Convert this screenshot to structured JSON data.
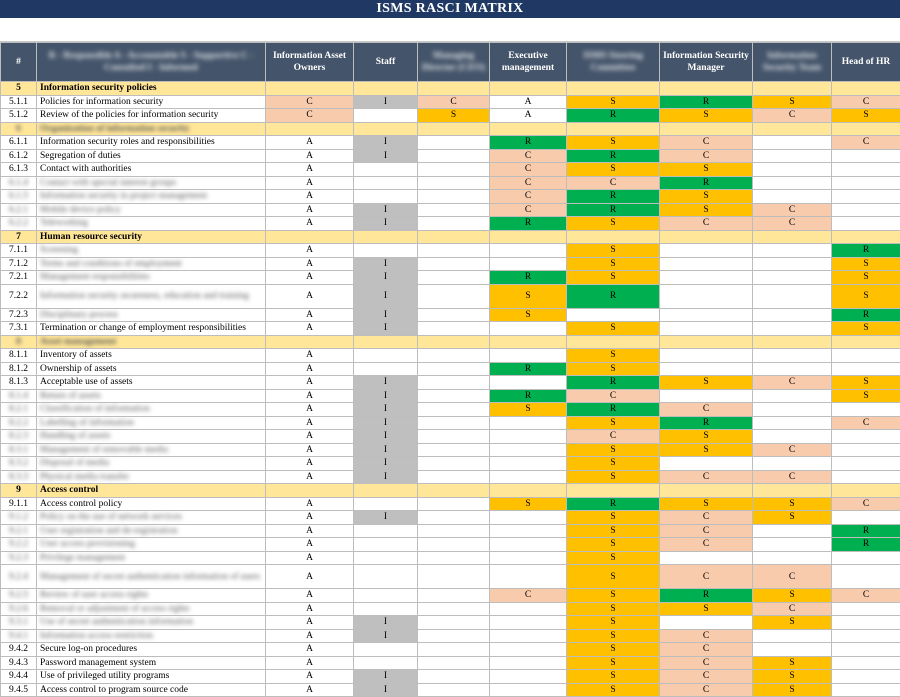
{
  "title": "ISMS RASCI MATRIX",
  "header": {
    "num": "#",
    "legend": "R - Responsible  A - Accountable  S - Supportive  C - Consulted  I - Informed",
    "roles": [
      {
        "label": "Information Asset Owners",
        "blurred": false
      },
      {
        "label": "Staff",
        "blurred": false
      },
      {
        "label": "Managing Director (CEO)",
        "blurred": true
      },
      {
        "label": "Executive management",
        "blurred": false
      },
      {
        "label": "ISMS Steering Committee",
        "blurred": true
      },
      {
        "label": "Information Security Manager",
        "blurred": false
      },
      {
        "label": "Information Security Team",
        "blurred": true
      },
      {
        "label": "Head of HR",
        "blurred": false
      }
    ]
  },
  "colors": {
    "S": "#ffc000",
    "C": "#f8cbad",
    "R": "#00b050",
    "I": "#bfbfbf",
    "header": "#44546a",
    "title": "#1f3864",
    "section": "#ffe699"
  },
  "rows": [
    {
      "num": "5",
      "name": "Information security policies",
      "section": true,
      "cells": [
        "",
        "",
        "",
        "",
        "",
        "",
        "",
        ""
      ]
    },
    {
      "num": "5.1.1",
      "name": "Policies for information security",
      "cells": [
        "C",
        "I",
        "C",
        "A",
        "S",
        "R",
        "S",
        "C"
      ]
    },
    {
      "num": "5.1.2",
      "name": "Review of the policies for information security",
      "cells": [
        "C",
        "",
        "S",
        "A",
        "R",
        "S",
        "C",
        "S"
      ]
    },
    {
      "num": "6",
      "name": "Organization of information security",
      "section": true,
      "blurNum": true,
      "blurName": true,
      "cells": [
        "",
        "",
        "",
        "",
        "",
        "",
        "",
        ""
      ]
    },
    {
      "num": "6.1.1",
      "name": "Information security roles and responsibilities",
      "cells": [
        "A",
        "I",
        "",
        "R",
        "S",
        "C",
        "",
        "C"
      ]
    },
    {
      "num": "6.1.2",
      "name": "Segregation of duties",
      "cells": [
        "A",
        "I",
        "",
        "C",
        "R",
        "C",
        "",
        ""
      ]
    },
    {
      "num": "6.1.3",
      "name": "Contact with authorities",
      "cells": [
        "A",
        "",
        "",
        "C",
        "S",
        "S",
        "",
        ""
      ]
    },
    {
      "num": "6.1.4",
      "name": "Contact with special interest groups",
      "blurNum": true,
      "blurName": true,
      "cells": [
        "A",
        "",
        "",
        "C",
        "C",
        "R",
        "",
        ""
      ]
    },
    {
      "num": "6.1.5",
      "name": "Information security in project management",
      "blurNum": true,
      "blurName": true,
      "cells": [
        "A",
        "",
        "",
        "C",
        "R",
        "S",
        "",
        ""
      ]
    },
    {
      "num": "6.2.1",
      "name": "Mobile device policy",
      "blurNum": true,
      "blurName": true,
      "cells": [
        "A",
        "I",
        "",
        "C",
        "R",
        "S",
        "C",
        ""
      ]
    },
    {
      "num": "6.2.2",
      "name": "Teleworking",
      "blurNum": true,
      "blurName": true,
      "cells": [
        "A",
        "I",
        "",
        "R",
        "S",
        "C",
        "C",
        ""
      ]
    },
    {
      "num": "7",
      "name": "Human resource security",
      "section": true,
      "cells": [
        "",
        "",
        "",
        "",
        "",
        "",
        "",
        ""
      ]
    },
    {
      "num": "7.1.1",
      "name": "Screening",
      "blurName": true,
      "cells": [
        "A",
        "",
        "",
        "",
        "S",
        "",
        "",
        "R"
      ]
    },
    {
      "num": "7.1.2",
      "name": "Terms and conditions of employment",
      "blurName": true,
      "cells": [
        "A",
        "I",
        "",
        "",
        "S",
        "",
        "",
        "S"
      ]
    },
    {
      "num": "7.2.1",
      "name": "Management responsibilities",
      "blurName": true,
      "cells": [
        "A",
        "I",
        "",
        "R",
        "S",
        "",
        "",
        "S"
      ]
    },
    {
      "num": "7.2.2",
      "name": "Information security awareness, education and training",
      "blurName": true,
      "tall": true,
      "cells": [
        "A",
        "I",
        "",
        "S",
        "R",
        "",
        "",
        "S"
      ]
    },
    {
      "num": "7.2.3",
      "name": "Disciplinary process",
      "blurName": true,
      "cells": [
        "A",
        "I",
        "",
        "S",
        "",
        "",
        "",
        "R"
      ]
    },
    {
      "num": "7.3.1",
      "name": "Termination or change of employment responsibilities",
      "cells": [
        "A",
        "I",
        "",
        "",
        "S",
        "",
        "",
        "S"
      ]
    },
    {
      "num": "8",
      "name": "Asset management",
      "section": true,
      "blurNum": true,
      "blurName": true,
      "cells": [
        "",
        "",
        "",
        "",
        "",
        "",
        "",
        ""
      ]
    },
    {
      "num": "8.1.1",
      "name": "Inventory of assets",
      "cells": [
        "A",
        "",
        "",
        "",
        "S",
        "",
        "",
        ""
      ]
    },
    {
      "num": "8.1.2",
      "name": "Ownership of assets",
      "cells": [
        "A",
        "",
        "",
        "R",
        "S",
        "",
        "",
        ""
      ]
    },
    {
      "num": "8.1.3",
      "name": "Acceptable use of assets",
      "cells": [
        "A",
        "I",
        "",
        "",
        "R",
        "S",
        "C",
        "S"
      ]
    },
    {
      "num": "8.1.4",
      "name": "Return of assets",
      "blurNum": true,
      "blurName": true,
      "cells": [
        "A",
        "I",
        "",
        "R",
        "C",
        "",
        "",
        "S"
      ]
    },
    {
      "num": "8.2.1",
      "name": "Classification of information",
      "blurNum": true,
      "blurName": true,
      "cells": [
        "A",
        "I",
        "",
        "S",
        "R",
        "C",
        "",
        ""
      ]
    },
    {
      "num": "8.2.2",
      "name": "Labelling of information",
      "blurNum": true,
      "blurName": true,
      "cells": [
        "A",
        "I",
        "",
        "",
        "S",
        "R",
        "",
        "C"
      ]
    },
    {
      "num": "8.2.3",
      "name": "Handling of assets",
      "blurNum": true,
      "blurName": true,
      "cells": [
        "A",
        "I",
        "",
        "",
        "C",
        "S",
        "",
        ""
      ]
    },
    {
      "num": "8.3.1",
      "name": "Management of removable media",
      "blurNum": true,
      "blurName": true,
      "cells": [
        "A",
        "I",
        "",
        "",
        "S",
        "S",
        "C",
        ""
      ]
    },
    {
      "num": "8.3.2",
      "name": "Disposal of media",
      "blurNum": true,
      "blurName": true,
      "cells": [
        "A",
        "I",
        "",
        "",
        "S",
        "",
        "",
        ""
      ]
    },
    {
      "num": "8.3.3",
      "name": "Physical media transfer",
      "blurNum": true,
      "blurName": true,
      "cells": [
        "A",
        "I",
        "",
        "",
        "S",
        "C",
        "C",
        ""
      ]
    },
    {
      "num": "9",
      "name": "Access control",
      "section": true,
      "cells": [
        "",
        "",
        "",
        "",
        "",
        "",
        "",
        ""
      ]
    },
    {
      "num": "9.1.1",
      "name": "Access control policy",
      "cells": [
        "A",
        "",
        "",
        "S",
        "R",
        "S",
        "S",
        "C"
      ]
    },
    {
      "num": "9.1.2",
      "name": "Policy on the use of network services",
      "blurNum": true,
      "blurName": true,
      "cells": [
        "A",
        "I",
        "",
        "",
        "S",
        "C",
        "S",
        ""
      ]
    },
    {
      "num": "9.2.1",
      "name": "User registration and de-registration",
      "blurNum": true,
      "blurName": true,
      "cells": [
        "A",
        "",
        "",
        "",
        "S",
        "C",
        "",
        "R"
      ]
    },
    {
      "num": "9.2.2",
      "name": "User access provisioning",
      "blurNum": true,
      "blurName": true,
      "cells": [
        "A",
        "",
        "",
        "",
        "S",
        "C",
        "",
        "R"
      ]
    },
    {
      "num": "9.2.3",
      "name": "Privilege management",
      "blurNum": true,
      "blurName": true,
      "cells": [
        "A",
        "",
        "",
        "",
        "S",
        "",
        "",
        ""
      ]
    },
    {
      "num": "9.2.4",
      "name": "Management of secret authentication information of users",
      "blurNum": true,
      "blurName": true,
      "tall": true,
      "cells": [
        "A",
        "",
        "",
        "",
        "S",
        "C",
        "C",
        ""
      ]
    },
    {
      "num": "9.2.5",
      "name": "Review of user access rights",
      "blurNum": true,
      "blurName": true,
      "cells": [
        "A",
        "",
        "",
        "C",
        "S",
        "R",
        "S",
        "C"
      ]
    },
    {
      "num": "9.2.6",
      "name": "Removal or adjustment of access rights",
      "blurNum": true,
      "blurName": true,
      "cells": [
        "A",
        "",
        "",
        "",
        "S",
        "S",
        "C",
        ""
      ]
    },
    {
      "num": "9.3.1",
      "name": "Use of secret authentication information",
      "blurNum": true,
      "blurName": true,
      "cells": [
        "A",
        "I",
        "",
        "",
        "S",
        "",
        "S",
        ""
      ]
    },
    {
      "num": "9.4.1",
      "name": "Information access restriction",
      "blurNum": true,
      "blurName": true,
      "cells": [
        "A",
        "I",
        "",
        "",
        "S",
        "C",
        "",
        ""
      ]
    },
    {
      "num": "9.4.2",
      "name": "Secure log-on procedures",
      "cells": [
        "A",
        "",
        "",
        "",
        "S",
        "C",
        "",
        ""
      ]
    },
    {
      "num": "9.4.3",
      "name": "Password management system",
      "cells": [
        "A",
        "",
        "",
        "",
        "S",
        "C",
        "S",
        ""
      ]
    },
    {
      "num": "9.4.4",
      "name": "Use of privileged utility programs",
      "cells": [
        "A",
        "I",
        "",
        "",
        "S",
        "C",
        "S",
        ""
      ]
    },
    {
      "num": "9.4.5",
      "name": "Access control to program source code",
      "cells": [
        "A",
        "I",
        "",
        "",
        "S",
        "C",
        "S",
        ""
      ]
    }
  ]
}
